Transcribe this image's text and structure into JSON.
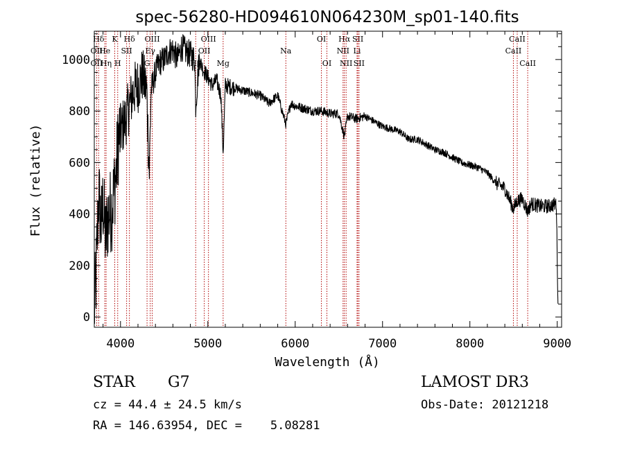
{
  "chart_data": {
    "type": "line",
    "title": "spec-56280-HD094610N064230M_sp01-140.fits",
    "xlabel": "Wavelength (Å)",
    "ylabel": "Flux (relative)",
    "xlim": [
      3700,
      9050
    ],
    "ylim": [
      -40,
      1110
    ],
    "xticks": [
      4000,
      5000,
      6000,
      7000,
      8000,
      9000
    ],
    "yticks": [
      0,
      200,
      400,
      600,
      800,
      1000
    ],
    "spectrum_envelope": {
      "wavelength": [
        3700,
        3720,
        3750,
        3780,
        3800,
        3830,
        3860,
        3900,
        3950,
        3980,
        4000,
        4050,
        4100,
        4150,
        4200,
        4250,
        4300,
        4330,
        4350,
        4400,
        4450,
        4500,
        4550,
        4600,
        4650,
        4700,
        4750,
        4800,
        4850,
        4861,
        4900,
        4950,
        5000,
        5050,
        5100,
        5150,
        5175,
        5200,
        5300,
        5400,
        5500,
        5600,
        5700,
        5800,
        5893,
        5950,
        6000,
        6100,
        6200,
        6300,
        6400,
        6500,
        6563,
        6600,
        6700,
        6800,
        6900,
        7000,
        7100,
        7200,
        7300,
        7400,
        7500,
        7600,
        7700,
        7800,
        7900,
        8000,
        8100,
        8200,
        8300,
        8400,
        8498,
        8542,
        8600,
        8662,
        8700,
        8800,
        8900,
        8990,
        9010
      ],
      "flux": [
        20,
        150,
        480,
        350,
        450,
        300,
        400,
        420,
        560,
        700,
        720,
        760,
        820,
        880,
        900,
        940,
        880,
        560,
        880,
        950,
        990,
        1000,
        1030,
        1040,
        1000,
        1050,
        1030,
        1020,
        1000,
        820,
        1000,
        960,
        930,
        900,
        920,
        860,
        640,
        900,
        890,
        880,
        870,
        860,
        830,
        860,
        750,
        830,
        820,
        810,
        800,
        800,
        790,
        790,
        700,
        780,
        770,
        780,
        760,
        740,
        730,
        720,
        690,
        690,
        670,
        650,
        640,
        620,
        600,
        590,
        580,
        560,
        520,
        500,
        420,
        450,
        460,
        410,
        440,
        430,
        430,
        440,
        20
      ]
    },
    "line_markers": [
      {
        "label": "Hδ",
        "wavelength": 3750,
        "row": 1
      },
      {
        "label": "K",
        "wavelength": 3934,
        "row": 1
      },
      {
        "label": "Hδ",
        "wavelength": 4102,
        "row": 1
      },
      {
        "label": "OIII",
        "wavelength": 4363,
        "row": 1
      },
      {
        "label": "OIII",
        "wavelength": 5007,
        "row": 1
      },
      {
        "label": "OI",
        "wavelength": 6300,
        "row": 1
      },
      {
        "label": "Hα",
        "wavelength": 6563,
        "row": 1
      },
      {
        "label": "SII",
        "wavelength": 6717,
        "row": 1
      },
      {
        "label": "CaII",
        "wavelength": 8542,
        "row": 1
      },
      {
        "label": "OII",
        "wavelength": 3727,
        "row": 2
      },
      {
        "label": "He",
        "wavelength": 3820,
        "row": 2
      },
      {
        "label": "SII",
        "wavelength": 4070,
        "row": 2
      },
      {
        "label": "Eγ",
        "wavelength": 4340,
        "row": 2
      },
      {
        "label": "OII",
        "wavelength": 4959,
        "row": 2
      },
      {
        "label": "Na",
        "wavelength": 5893,
        "row": 2
      },
      {
        "label": "NII",
        "wavelength": 6548,
        "row": 2
      },
      {
        "label": "Li",
        "wavelength": 6708,
        "row": 2
      },
      {
        "label": "CaII",
        "wavelength": 8498,
        "row": 2
      },
      {
        "label": "OII",
        "wavelength": 3727,
        "row": 3
      },
      {
        "label": "Hη",
        "wavelength": 3835,
        "row": 3
      },
      {
        "label": "H",
        "wavelength": 3968,
        "row": 3
      },
      {
        "label": "G",
        "wavelength": 4304,
        "row": 3
      },
      {
        "label": "Hβ",
        "wavelength": 4861,
        "row": 3
      },
      {
        "label": "Mg",
        "wavelength": 5175,
        "row": 3
      },
      {
        "label": "OI",
        "wavelength": 6363,
        "row": 3
      },
      {
        "label": "NII",
        "wavelength": 6583,
        "row": 3
      },
      {
        "label": "SII",
        "wavelength": 6731,
        "row": 3
      },
      {
        "label": "CaII",
        "wavelength": 8662,
        "row": 3
      }
    ]
  },
  "info": {
    "object_class": "STAR",
    "subclass": "G7",
    "survey": "LAMOST DR3",
    "cz": "cz = 44.4 ± 24.5 km/s",
    "obs_date": "Obs-Date: 20121218",
    "coords": "RA = 146.63954, DEC =    5.08281"
  },
  "colors": {
    "spectrum": "#000000",
    "marker_line": "#b00000",
    "axis": "#000000",
    "background": "#ffffff"
  }
}
